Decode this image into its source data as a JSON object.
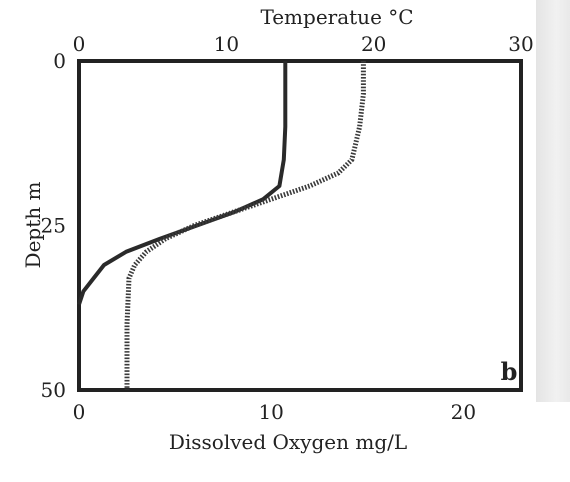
{
  "chart_data": {
    "type": "line",
    "panel_label": "b",
    "top_axis": {
      "label": "Temperatue °C",
      "ticks": [
        "0",
        "10",
        "20",
        "30"
      ],
      "range": [
        0,
        30
      ]
    },
    "bottom_axis": {
      "label": "Dissolved Oxygen  mg/L",
      "ticks": [
        "0",
        "10",
        "20"
      ],
      "range": [
        0,
        23
      ]
    },
    "y_axis": {
      "label": "Depth m",
      "ticks": [
        "0",
        "25",
        "50"
      ],
      "range": [
        0,
        50
      ],
      "inverted": true
    },
    "grid": false,
    "series": [
      {
        "axis": "top",
        "style": "solid",
        "color": "#2a2a2a",
        "x": [
          14.0,
          14.0,
          14.0,
          13.9,
          13.6,
          12.5,
          10.5,
          8.0,
          5.5,
          3.2,
          1.7,
          1.0,
          0.3,
          0.0
        ],
        "y": [
          0,
          5,
          10,
          15,
          19,
          21,
          23,
          25,
          27,
          29,
          31,
          33,
          35,
          37
        ]
      },
      {
        "axis": "bottom",
        "style": "dotted",
        "color": "#3a3a3a",
        "x": [
          14.8,
          14.8,
          14.6,
          14.2,
          13.5,
          12.0,
          10.0,
          8.0,
          6.0,
          4.5,
          3.5,
          2.9,
          2.6,
          2.5,
          2.5
        ],
        "y": [
          0,
          5,
          10,
          15,
          17,
          19,
          21,
          23,
          25,
          27,
          29,
          31,
          33,
          40,
          50
        ]
      }
    ]
  }
}
